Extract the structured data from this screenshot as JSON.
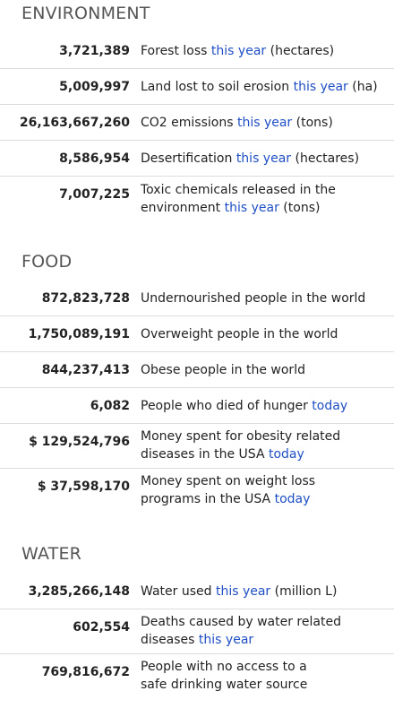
{
  "sections": [
    {
      "title": "ENVIRONMENT",
      "rows": [
        {
          "value": "3,721,389",
          "pre": "Forest loss ",
          "hl": "this year",
          "post": " (hectares)"
        },
        {
          "value": "5,009,997",
          "pre": "Land lost to soil erosion ",
          "hl": "this year",
          "post": " (ha)"
        },
        {
          "value": "26,163,667,260",
          "pre": "CO2 emissions ",
          "hl": "this year",
          "post": " (tons)"
        },
        {
          "value": "8,586,954",
          "pre": "Desertification ",
          "hl": "this year",
          "post": " (hectares)"
        },
        {
          "value": "7,007,225",
          "pre": "Toxic chemicals released in the environment ",
          "hl": "this year",
          "post": " (tons)"
        }
      ]
    },
    {
      "title": "FOOD",
      "rows": [
        {
          "value": "872,823,728",
          "pre": "Undernourished people in the world",
          "hl": "",
          "post": ""
        },
        {
          "value": "1,750,089,191",
          "pre": "Overweight people in the world",
          "hl": "",
          "post": ""
        },
        {
          "value": "844,237,413",
          "pre": "Obese people in the world",
          "hl": "",
          "post": ""
        },
        {
          "value": "6,082",
          "pre": "People who died of hunger ",
          "hl": "today",
          "post": ""
        },
        {
          "value": "$ 129,524,796",
          "pre": "Money spent for obesity related diseases in the USA ",
          "hl": "today",
          "post": ""
        },
        {
          "value": "$ 37,598,170",
          "pre": "Money spent on weight loss programs in the USA ",
          "hl": "today",
          "post": ""
        }
      ]
    },
    {
      "title": "WATER",
      "rows": [
        {
          "value": "3,285,266,148",
          "pre": "Water used ",
          "hl": "this year",
          "post": " (million L)"
        },
        {
          "value": "602,554",
          "pre": "Deaths caused by water related diseases ",
          "hl": "this year",
          "post": ""
        },
        {
          "value": "769,816,672",
          "pre": "People with no access to a safe drinking water source",
          "hl": "",
          "post": ""
        }
      ]
    }
  ],
  "colors": {
    "highlight": "#1f4fc4",
    "title": "#555555",
    "divider": "#dcdcdc"
  }
}
